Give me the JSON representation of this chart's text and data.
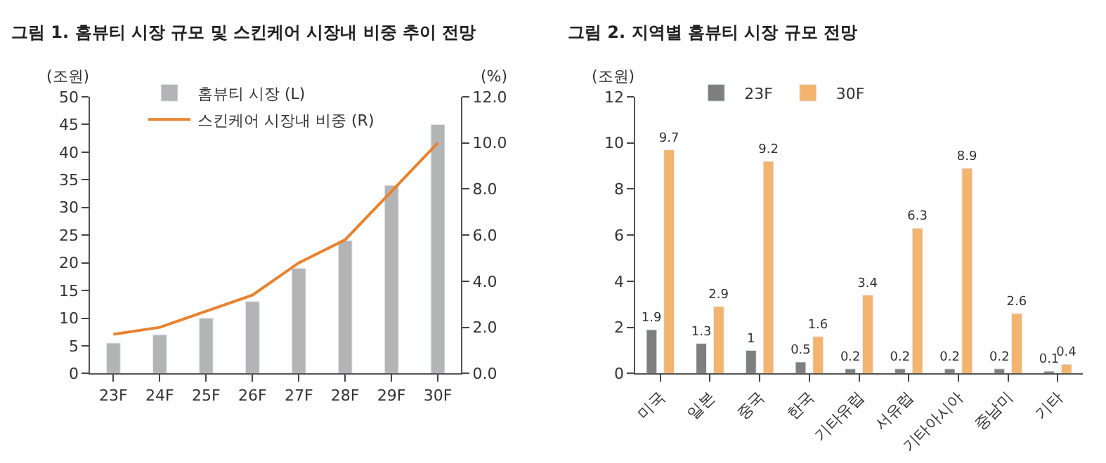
{
  "chart_data": [
    {
      "type": "bar",
      "title": "그림 1. 홈뷰티 시장 규모 및 스킨케어 시장내 비중 추이 전망",
      "ylabel": "(조원)",
      "y2label": "(%)",
      "categories": [
        "23F",
        "24F",
        "25F",
        "26F",
        "27F",
        "28F",
        "29F",
        "30F"
      ],
      "series": [
        {
          "name": "홈뷰티 시장 (L)",
          "color": "#b4b4b4",
          "values": [
            5.5,
            7,
            10,
            13,
            19,
            24,
            34,
            45
          ]
        },
        {
          "name": "스킨케어 시장내 비중 (R)",
          "type": "line",
          "axis": "y2",
          "color": "#e8822e",
          "values": [
            1.7,
            2.0,
            2.7,
            3.4,
            4.8,
            5.8,
            7.9,
            10.0
          ]
        }
      ],
      "ylim": [
        0,
        50
      ],
      "yticks": [
        0,
        5,
        10,
        15,
        20,
        25,
        30,
        35,
        40,
        45,
        50
      ],
      "y2lim": [
        0,
        12
      ],
      "y2ticks": [
        {
          "value": 0,
          "label": "0.0"
        },
        {
          "value": 2,
          "label": "2.0"
        },
        {
          "value": 4,
          "label": "4.0"
        },
        {
          "value": 6,
          "label": "6.0"
        },
        {
          "value": 8,
          "label": "8.0"
        },
        {
          "value": 10,
          "label": "10.0"
        },
        {
          "value": 12,
          "label": "12.0"
        }
      ],
      "legend": "top left",
      "marker": "none",
      "line_style": "solid"
    },
    {
      "type": "bar",
      "title": "그림 2. 지역별 홈뷰티 시장 규모 전망",
      "ylabel": "(조원)",
      "categories": [
        "미국",
        "일본",
        "중국",
        "한국",
        "기타유럽",
        "서유럽",
        "기타아시아",
        "중남미",
        "기타"
      ],
      "series": [
        {
          "name": "23F",
          "color": "#7f7f7f",
          "values": [
            1.9,
            1.3,
            1,
            0.5,
            0.2,
            0.2,
            0.2,
            0.2,
            0.1
          ]
        },
        {
          "name": "30F",
          "color": "#f2b46e",
          "values": [
            9.7,
            2.9,
            9.2,
            1.6,
            3.4,
            6.3,
            8.9,
            2.6,
            0.4
          ]
        }
      ],
      "ylim": [
        0,
        12
      ],
      "yticks": [
        0,
        2,
        4,
        6,
        8,
        10,
        12
      ],
      "legend": "top left",
      "data_labels": true
    }
  ]
}
